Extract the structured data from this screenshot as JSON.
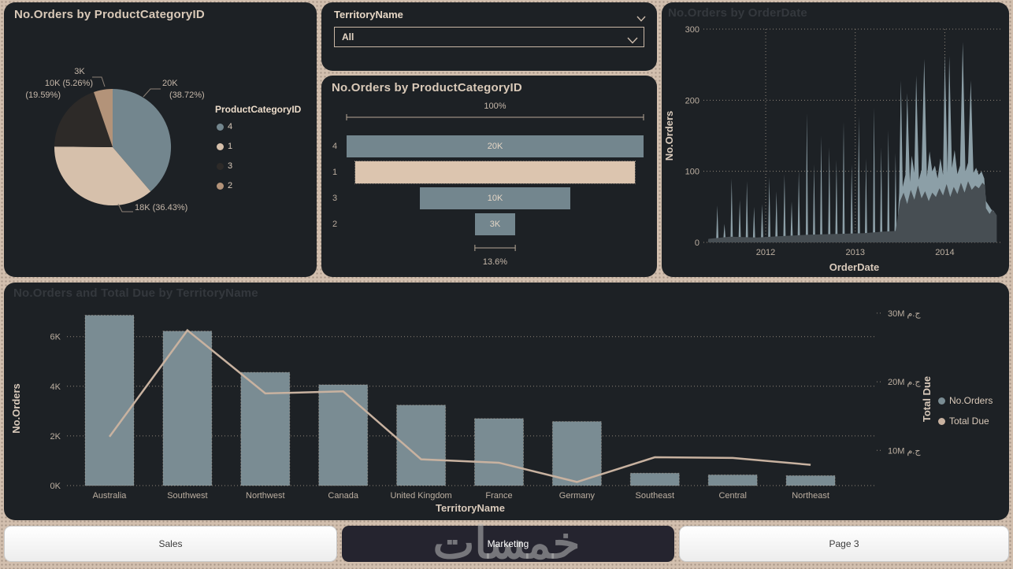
{
  "slicer": {
    "title": "TerritoryName",
    "value": "All"
  },
  "tabs": [
    {
      "label": "Sales",
      "active": false
    },
    {
      "label": "Marketing",
      "active": true
    },
    {
      "label": "Page 3",
      "active": false
    }
  ],
  "watermark": "خمسات",
  "colors": {
    "panel_bg": "#1d2125",
    "canvas": "#d2bfae",
    "cat4": "#73868e",
    "cat1": "#d6c0ab",
    "cat3": "#2d2a28",
    "cat2": "#b39379",
    "bar": "#7a8c93",
    "line": "#c8b2a0",
    "area_light": "#8c9fa7",
    "area_dark": "#474e53"
  },
  "chart_data": [
    {
      "type": "pie",
      "title": "No.Orders by ProductCategoryID",
      "legend_title": "ProductCategoryID",
      "legend_position": "right",
      "slices": [
        {
          "category": "4",
          "value_label": "20K",
          "pct": 38.72,
          "color": "#73868e"
        },
        {
          "category": "1",
          "value_label": "18K",
          "pct": 36.43,
          "color": "#d6c0ab"
        },
        {
          "category": "3",
          "value_label": "10K",
          "pct": 19.59,
          "color": "#2d2a28"
        },
        {
          "category": "2",
          "value_label": "3K",
          "pct": 5.26,
          "color": "#b39379"
        }
      ],
      "callout_labels": [
        {
          "text": "3K",
          "x": 96,
          "y": 88,
          "align": "center"
        },
        {
          "text": "10K (5.26%)",
          "x": 113,
          "y": 103,
          "align": "right"
        },
        {
          "text": "(19.59%)",
          "x": 72,
          "y": 118,
          "align": "right"
        },
        {
          "text": "20K",
          "x": 201,
          "y": 103,
          "align": "left"
        },
        {
          "text": "(38.72%)",
          "x": 210,
          "y": 118,
          "align": "left"
        },
        {
          "text": "18K (36.43%)",
          "x": 166,
          "y": 261,
          "align": "left"
        }
      ],
      "leader_lines": [
        [
          [
            112,
            95
          ],
          [
            124,
            95
          ],
          [
            128,
            107
          ]
        ],
        [
          [
            199,
            110
          ],
          [
            186,
            110
          ],
          [
            177,
            120
          ]
        ],
        [
          [
            164,
            266
          ],
          [
            150,
            266
          ],
          [
            145,
            256
          ]
        ]
      ],
      "geometry": {
        "cx": 138,
        "cy": 184,
        "r": 74
      }
    },
    {
      "type": "funnel",
      "title": "No.Orders by ProductCategoryID",
      "categories": [
        "4",
        "1",
        "3",
        "2"
      ],
      "values": [
        20000,
        18000,
        10000,
        3000
      ],
      "bar_labels": [
        "20K",
        "",
        "10K",
        "3K"
      ],
      "width_pct": [
        100,
        94.1,
        50.7,
        13.6
      ],
      "bar_colors": [
        "#73868e",
        "#dcc5af",
        "#73868e",
        "#73868e"
      ],
      "top_label": "100%",
      "bottom_label": "13.6%"
    },
    {
      "type": "area",
      "title": "No.Orders by OrderDate",
      "xlabel": "OrderDate",
      "ylabel": "No.Orders",
      "x_ticks": [
        2012,
        2013,
        2014
      ],
      "y_ticks": [
        0,
        100,
        200,
        300
      ],
      "x_range": [
        2011.34,
        2014.61
      ],
      "y_range": [
        0,
        300
      ],
      "grid": true,
      "series": [
        {
          "name": "No.Orders",
          "color": "#8c9fa7",
          "base": 4,
          "spikes": [
            [
              2011.46,
              52
            ],
            [
              2011.54,
              26
            ],
            [
              2011.62,
              90
            ],
            [
              2011.71,
              60
            ],
            [
              2011.79,
              86
            ],
            [
              2011.87,
              50
            ],
            [
              2011.96,
              54
            ],
            [
              2012.04,
              92
            ],
            [
              2012.12,
              72
            ],
            [
              2012.21,
              96
            ],
            [
              2012.29,
              58
            ],
            [
              2012.37,
              102
            ],
            [
              2012.46,
              182
            ],
            [
              2012.54,
              110
            ],
            [
              2012.62,
              150
            ],
            [
              2012.71,
              134
            ],
            [
              2012.79,
              116
            ],
            [
              2012.87,
              170
            ],
            [
              2012.96,
              110
            ],
            [
              2013.04,
              178
            ],
            [
              2013.12,
              118
            ],
            [
              2013.21,
              190
            ],
            [
              2013.29,
              134
            ],
            [
              2013.37,
              158
            ],
            [
              2013.45,
              126
            ]
          ],
          "band": [
            [
              2013.49,
              70
            ],
            [
              2013.51,
              228
            ],
            [
              2013.53,
              78
            ],
            [
              2013.56,
              95
            ],
            [
              2013.58,
              210
            ],
            [
              2013.61,
              85
            ],
            [
              2013.63,
              122
            ],
            [
              2013.66,
              98
            ],
            [
              2013.68,
              235
            ],
            [
              2013.71,
              88
            ],
            [
              2013.74,
              102
            ],
            [
              2013.77,
              258
            ],
            [
              2013.8,
              92
            ],
            [
              2013.83,
              128
            ],
            [
              2013.86,
              100
            ],
            [
              2013.89,
              108
            ],
            [
              2013.92,
              90
            ],
            [
              2013.95,
              118
            ],
            [
              2013.98,
              95
            ],
            [
              2014.0,
              265
            ],
            [
              2014.03,
              98
            ],
            [
              2014.05,
              262
            ],
            [
              2014.08,
              105
            ],
            [
              2014.11,
              130
            ],
            [
              2014.14,
              96
            ],
            [
              2014.17,
              108
            ],
            [
              2014.2,
              282
            ],
            [
              2014.23,
              100
            ],
            [
              2014.26,
              112
            ],
            [
              2014.29,
              228
            ],
            [
              2014.32,
              98
            ],
            [
              2014.35,
              105
            ],
            [
              2014.38,
              95
            ],
            [
              2014.41,
              100
            ],
            [
              2014.44,
              90
            ],
            [
              2014.46,
              58
            ],
            [
              2014.49,
              52
            ],
            [
              2014.52,
              46
            ],
            [
              2014.55,
              44
            ]
          ]
        },
        {
          "name": "dense-overlay",
          "color": "#474e53",
          "band": [
            [
              2011.36,
              5
            ],
            [
              2011.6,
              8
            ],
            [
              2011.9,
              7
            ],
            [
              2012.2,
              9
            ],
            [
              2012.5,
              11
            ],
            [
              2012.8,
              12
            ],
            [
              2013.1,
              13
            ],
            [
              2013.3,
              15
            ],
            [
              2013.45,
              16
            ],
            [
              2013.48,
              40
            ],
            [
              2013.5,
              58
            ],
            [
              2013.54,
              70
            ],
            [
              2013.58,
              54
            ],
            [
              2013.62,
              74
            ],
            [
              2013.66,
              60
            ],
            [
              2013.7,
              80
            ],
            [
              2013.74,
              62
            ],
            [
              2013.78,
              72
            ],
            [
              2013.82,
              58
            ],
            [
              2013.86,
              70
            ],
            [
              2013.9,
              64
            ],
            [
              2013.94,
              76
            ],
            [
              2013.98,
              66
            ],
            [
              2014.02,
              82
            ],
            [
              2014.06,
              64
            ],
            [
              2014.1,
              78
            ],
            [
              2014.14,
              68
            ],
            [
              2014.18,
              84
            ],
            [
              2014.22,
              70
            ],
            [
              2014.26,
              86
            ],
            [
              2014.3,
              74
            ],
            [
              2014.34,
              80
            ],
            [
              2014.38,
              76
            ],
            [
              2014.42,
              84
            ],
            [
              2014.45,
              80
            ],
            [
              2014.46,
              48
            ],
            [
              2014.5,
              40
            ],
            [
              2014.53,
              46
            ],
            [
              2014.56,
              42
            ],
            [
              2014.58,
              38
            ]
          ]
        }
      ]
    },
    {
      "type": "combo-bar-line",
      "title": "No.Orders and Total Due by TerritoryName",
      "xlabel": "TerritoryName",
      "categories": [
        "Australia",
        "Southwest",
        "Northwest",
        "Canada",
        "United Kingdom",
        "France",
        "Germany",
        "Southeast",
        "Central",
        "Northeast"
      ],
      "bar_series": {
        "name": "No.Orders",
        "color": "#7a8c93",
        "values_k": [
          6.86,
          6.22,
          4.56,
          4.06,
          3.24,
          2.7,
          2.58,
          0.5,
          0.43,
          0.4
        ]
      },
      "line_series": {
        "name": "Total Due",
        "color": "#c8b2a0",
        "values_m": [
          12.0,
          27.5,
          18.3,
          18.6,
          8.7,
          8.2,
          5.4,
          9.0,
          8.9,
          7.9
        ]
      },
      "left_axis": {
        "label": "No.Orders",
        "ticks": [
          "0K",
          "2K",
          "4K",
          "6K"
        ],
        "tick_values": [
          0,
          2,
          4,
          6
        ]
      },
      "right_axis": {
        "label": "Total Due",
        "ticks": [
          "10M ج.م",
          "20M ج.م",
          "30M ج.م"
        ],
        "tick_values": [
          10,
          20,
          30
        ]
      },
      "legend": [
        {
          "label": "No.Orders",
          "color": "#7a8c93"
        },
        {
          "label": "Total Due",
          "color": "#c8b2a0"
        }
      ],
      "grid": true
    }
  ]
}
